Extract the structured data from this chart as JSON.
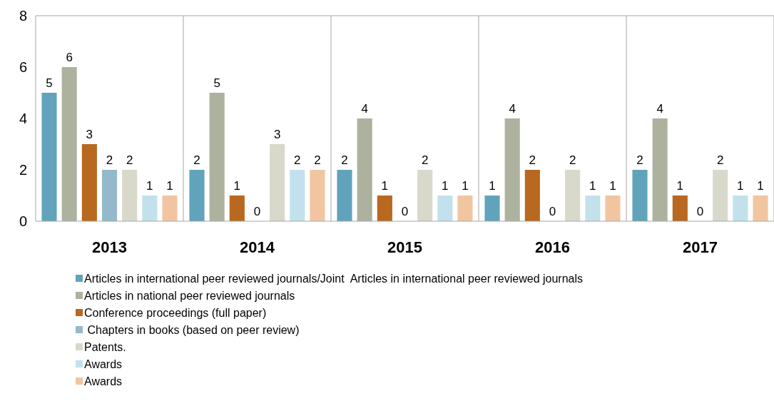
{
  "chart_data": {
    "type": "bar",
    "categories": [
      "2013",
      "2014",
      "2015",
      "2016",
      "2017"
    ],
    "series": [
      {
        "name": "Articles in international peer reviewed journals/Joint  Articles in international peer reviewed journals",
        "color": "#62a3bc",
        "values": [
          5,
          2,
          2,
          1,
          2
        ]
      },
      {
        "name": "Articles in national peer reviewed journals",
        "color": "#adb29f",
        "values": [
          6,
          5,
          4,
          4,
          4
        ]
      },
      {
        "name": "Conference proceedings (full paper)",
        "color": "#b96820",
        "values": [
          3,
          1,
          1,
          2,
          1
        ]
      },
      {
        "name": " Chapters in books (based on peer review)",
        "color": "#94b9ca",
        "values": [
          2,
          0,
          0,
          0,
          0
        ]
      },
      {
        "name": "Patents.",
        "color": "#d8d9cb",
        "values": [
          2,
          3,
          2,
          2,
          2
        ]
      },
      {
        "name": "Awards",
        "color": "#c2e1ed",
        "values": [
          1,
          2,
          1,
          1,
          1
        ]
      },
      {
        "name": "Awards",
        "color": "#f2c5a1",
        "values": [
          1,
          2,
          1,
          1,
          1
        ]
      }
    ],
    "ylim": [
      0,
      8
    ],
    "yticks": [
      0,
      2,
      4,
      6,
      8
    ],
    "grid": "x",
    "data_labels": true,
    "legend": "bottom"
  }
}
